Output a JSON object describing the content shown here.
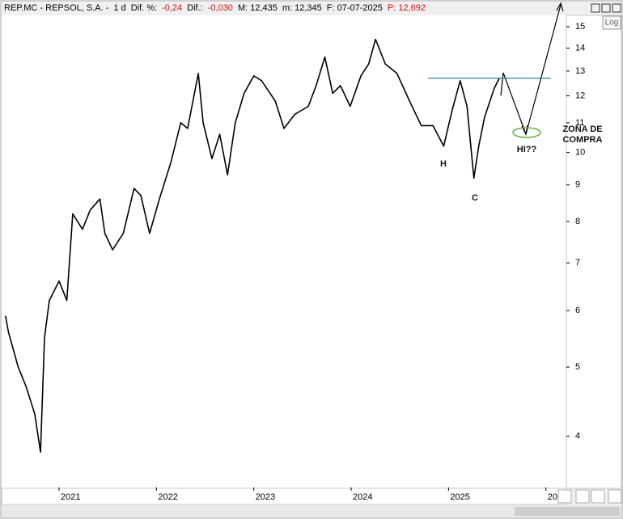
{
  "chart_data": {
    "type": "line",
    "log_scale": true,
    "color": "#000000",
    "header": [
      {
        "text": "REP.MC - REPSOL, S.A. -",
        "color": "#000000"
      },
      {
        "text": "1 d",
        "color": "#000000"
      },
      {
        "text": "Dif. %:",
        "color": "#000000"
      },
      {
        "text": "-0,24",
        "color": "#d01010"
      },
      {
        "text": "Dif.:",
        "color": "#000000"
      },
      {
        "text": "-0,030",
        "color": "#d01010"
      },
      {
        "text": "M: 12,435",
        "color": "#000000"
      },
      {
        "text": "m: 12,345",
        "color": "#000000"
      },
      {
        "text": "F: 07-07-2025",
        "color": "#000000"
      },
      {
        "text": "P: 12,692",
        "color": "#d01010"
      }
    ],
    "scale_button": "Log",
    "x": [
      2020.45,
      2020.48,
      2020.58,
      2020.66,
      2020.75,
      2020.81,
      2020.85,
      2020.9,
      2021.0,
      2021.08,
      2021.14,
      2021.24,
      2021.32,
      2021.42,
      2021.47,
      2021.55,
      2021.66,
      2021.77,
      2021.84,
      2021.93,
      2022.03,
      2022.15,
      2022.25,
      2022.32,
      2022.43,
      2022.48,
      2022.57,
      2022.65,
      2022.73,
      2022.81,
      2022.9,
      2023.0,
      2023.08,
      2023.22,
      2023.31,
      2023.42,
      2023.56,
      2023.64,
      2023.73,
      2023.81,
      2023.89,
      2023.99,
      2024.1,
      2024.18,
      2024.25,
      2024.35,
      2024.47,
      2024.6,
      2024.72,
      2024.84,
      2024.95,
      2025.04,
      2025.12,
      2025.19,
      2025.26,
      2025.31,
      2025.37,
      2025.47,
      2025.52
    ],
    "values": [
      5.9,
      5.6,
      5.0,
      4.7,
      4.3,
      3.8,
      5.5,
      6.2,
      6.6,
      6.2,
      8.2,
      7.8,
      8.3,
      8.6,
      7.7,
      7.3,
      7.7,
      8.9,
      8.7,
      7.7,
      8.6,
      9.7,
      11.0,
      10.8,
      12.9,
      11.0,
      9.8,
      10.6,
      9.3,
      11.0,
      12.1,
      12.8,
      12.6,
      11.8,
      10.8,
      11.3,
      11.6,
      12.4,
      13.6,
      12.1,
      12.4,
      11.6,
      12.8,
      13.3,
      14.4,
      13.3,
      12.9,
      11.8,
      10.9,
      10.9,
      10.2,
      11.5,
      12.6,
      11.6,
      9.2,
      10.2,
      11.2,
      12.3,
      12.692
    ],
    "resistance": {
      "value": 12.7,
      "x": [
        2024.79,
        2026.05
      ],
      "color": "#1f6f8f"
    },
    "annotations": [
      "H",
      "C",
      "HI??",
      "ZONA DE",
      "COMPRA"
    ],
    "ylim": [
      3.39,
      16.35
    ],
    "yticks": [
      4,
      5,
      6,
      7,
      8,
      9,
      10,
      11,
      12,
      13,
      14,
      15
    ],
    "xlim": [
      2020.41,
      2026.21
    ],
    "xticks": [
      2021,
      2022,
      2023,
      2024,
      2025,
      {
        "value": 2026,
        "label": "20"
      }
    ]
  }
}
